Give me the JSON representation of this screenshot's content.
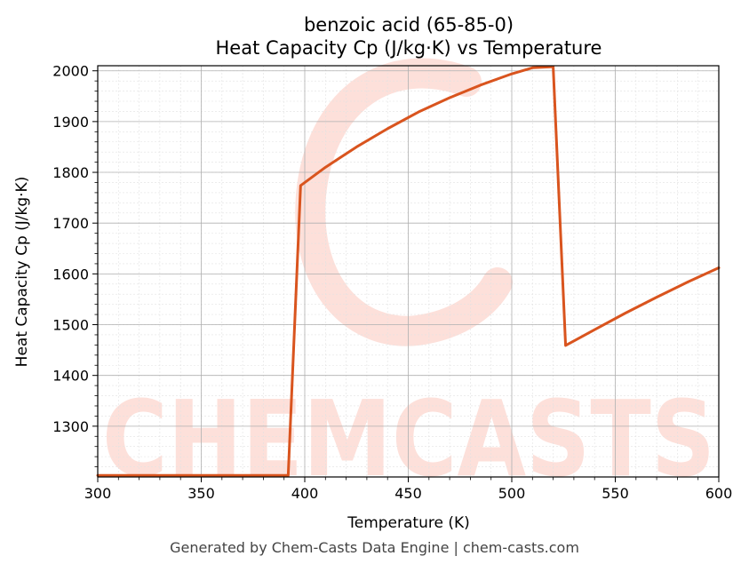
{
  "chart_data": {
    "type": "line",
    "title": "benzoic acid (65-85-0)",
    "subtitle": "Heat Capacity Cp (J/kg·K) vs Temperature",
    "xlabel": "Temperature (K)",
    "ylabel": "Heat Capacity Cp (J/kg·K)",
    "xlim": [
      300,
      600
    ],
    "ylim": [
      1200,
      2010
    ],
    "xticks": [
      300,
      350,
      400,
      450,
      500,
      550,
      600
    ],
    "yticks": [
      1300,
      1400,
      1500,
      1600,
      1700,
      1800,
      1900,
      2000
    ],
    "grid": true,
    "legend": "none",
    "series": [
      {
        "color": "#d9541e",
        "x": [
          300,
          390,
          392,
          398,
          410,
          425,
          440,
          455,
          470,
          485,
          500,
          510,
          520,
          526,
          540,
          555,
          570,
          585,
          600
        ],
        "y": [
          1203,
          1203,
          1203,
          1774,
          1810,
          1850,
          1886,
          1919,
          1947,
          1972,
          1994,
          2006,
          2008,
          1459,
          1490,
          1523,
          1554,
          1584,
          1612
        ]
      }
    ]
  },
  "watermark": {
    "text": "CHEMCASTS",
    "color": "#fde0da"
  },
  "footer": "Generated by Chem-Casts Data Engine | chem-casts.com"
}
